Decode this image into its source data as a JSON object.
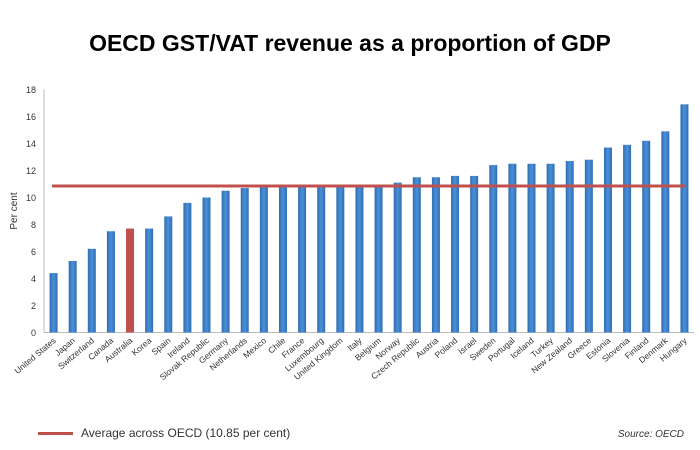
{
  "chart_data": {
    "type": "bar",
    "title": "OECD GST/VAT revenue as a proportion of GDP",
    "ylabel": "Per cent",
    "xlabel": "",
    "ylim": [
      0,
      18
    ],
    "yticks": [
      0,
      2,
      4,
      6,
      8,
      10,
      12,
      14,
      16,
      18
    ],
    "grid": false,
    "categories": [
      "United States",
      "Japan",
      "Switzerland",
      "Canada",
      "Australia",
      "Korea",
      "Spain",
      "Ireland",
      "Slovak Republic",
      "Germany",
      "Netherlands",
      "Mexico",
      "Chile",
      "France",
      "Luxembourg",
      "United Kingdom",
      "Italy",
      "Belgium",
      "Norway",
      "Czech Republic",
      "Austria",
      "Poland",
      "Israel",
      "Sweden",
      "Portugal",
      "Iceland",
      "Turkey",
      "New Zealand",
      "Greece",
      "Estonia",
      "Slovenia",
      "Finland",
      "Denmark",
      "Hungary"
    ],
    "values": [
      4.4,
      5.3,
      6.2,
      7.5,
      7.7,
      7.7,
      8.6,
      9.6,
      10.0,
      10.5,
      10.7,
      10.8,
      10.8,
      10.8,
      10.8,
      10.8,
      10.8,
      10.8,
      11.1,
      11.5,
      11.5,
      11.6,
      11.6,
      12.4,
      12.5,
      12.5,
      12.5,
      12.7,
      12.8,
      13.7,
      13.9,
      14.2,
      14.9,
      16.9
    ],
    "highlight_category": "Australia",
    "bar_color": "#3a7dc4",
    "highlight_color": "#c0504d",
    "reference_line": {
      "value": 10.85,
      "label": "Average across OECD (10.85 per cent)",
      "color": "#c0504d"
    },
    "legend_position": "bottom-left",
    "source": "Source: OECD"
  }
}
